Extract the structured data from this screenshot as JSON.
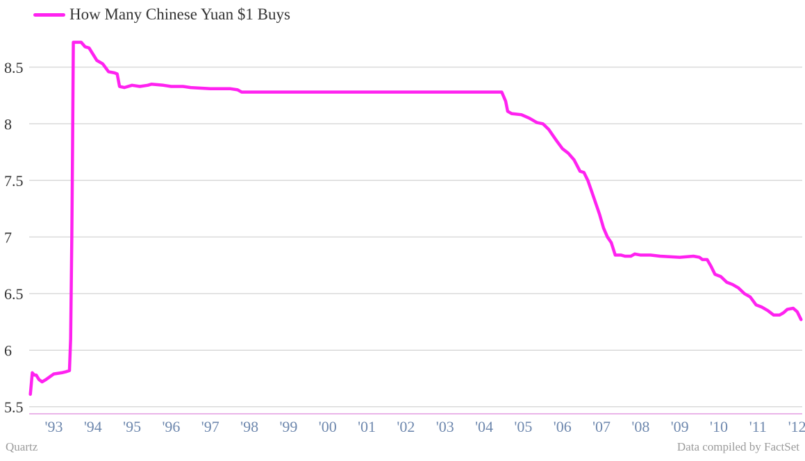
{
  "chart_data": {
    "type": "line",
    "title": "",
    "xlabel": "",
    "ylabel": "",
    "series": [
      {
        "name": "How Many Chinese Yuan $1 Buys",
        "color": "#ff22f0",
        "points": [
          [
            1992.9,
            5.61
          ],
          [
            1992.95,
            5.8
          ],
          [
            1993.0,
            5.78
          ],
          [
            1993.05,
            5.78
          ],
          [
            1993.12,
            5.74
          ],
          [
            1993.2,
            5.72
          ],
          [
            1993.3,
            5.74
          ],
          [
            1993.5,
            5.79
          ],
          [
            1993.7,
            5.8
          ],
          [
            1993.82,
            5.81
          ],
          [
            1993.9,
            5.82
          ],
          [
            1993.93,
            6.1
          ],
          [
            1993.96,
            7.0
          ],
          [
            1993.98,
            7.8
          ],
          [
            1994.0,
            8.72
          ],
          [
            1994.1,
            8.72
          ],
          [
            1994.2,
            8.72
          ],
          [
            1994.3,
            8.68
          ],
          [
            1994.4,
            8.67
          ],
          [
            1994.6,
            8.56
          ],
          [
            1994.75,
            8.53
          ],
          [
            1994.9,
            8.46
          ],
          [
            1995.05,
            8.45
          ],
          [
            1995.12,
            8.44
          ],
          [
            1995.18,
            8.33
          ],
          [
            1995.3,
            8.32
          ],
          [
            1995.5,
            8.34
          ],
          [
            1995.7,
            8.33
          ],
          [
            1995.9,
            8.34
          ],
          [
            1996.0,
            8.35
          ],
          [
            1996.3,
            8.34
          ],
          [
            1996.5,
            8.33
          ],
          [
            1996.8,
            8.33
          ],
          [
            1997.0,
            8.32
          ],
          [
            1997.5,
            8.31
          ],
          [
            1998.0,
            8.31
          ],
          [
            1998.2,
            8.3
          ],
          [
            1998.3,
            8.28
          ],
          [
            1999.0,
            8.28
          ],
          [
            2000.0,
            8.28
          ],
          [
            2001.0,
            8.28
          ],
          [
            2002.0,
            8.28
          ],
          [
            2003.0,
            8.28
          ],
          [
            2004.0,
            8.28
          ],
          [
            2004.95,
            8.28
          ],
          [
            2005.05,
            8.2
          ],
          [
            2005.1,
            8.11
          ],
          [
            2005.2,
            8.09
          ],
          [
            2005.45,
            8.08
          ],
          [
            2005.65,
            8.05
          ],
          [
            2005.85,
            8.01
          ],
          [
            2006.0,
            8.0
          ],
          [
            2006.15,
            7.95
          ],
          [
            2006.35,
            7.85
          ],
          [
            2006.5,
            7.78
          ],
          [
            2006.65,
            7.74
          ],
          [
            2006.8,
            7.68
          ],
          [
            2006.95,
            7.58
          ],
          [
            2007.05,
            7.57
          ],
          [
            2007.15,
            7.5
          ],
          [
            2007.25,
            7.4
          ],
          [
            2007.35,
            7.3
          ],
          [
            2007.45,
            7.2
          ],
          [
            2007.55,
            7.08
          ],
          [
            2007.65,
            7.0
          ],
          [
            2007.75,
            6.95
          ],
          [
            2007.85,
            6.84
          ],
          [
            2008.0,
            6.84
          ],
          [
            2008.1,
            6.83
          ],
          [
            2008.25,
            6.83
          ],
          [
            2008.35,
            6.85
          ],
          [
            2008.5,
            6.84
          ],
          [
            2008.75,
            6.84
          ],
          [
            2009.0,
            6.83
          ],
          [
            2009.5,
            6.82
          ],
          [
            2009.85,
            6.83
          ],
          [
            2010.0,
            6.82
          ],
          [
            2010.08,
            6.8
          ],
          [
            2010.2,
            6.8
          ],
          [
            2010.3,
            6.74
          ],
          [
            2010.4,
            6.67
          ],
          [
            2010.55,
            6.65
          ],
          [
            2010.7,
            6.6
          ],
          [
            2010.85,
            6.58
          ],
          [
            2011.0,
            6.55
          ],
          [
            2011.15,
            6.5
          ],
          [
            2011.3,
            6.47
          ],
          [
            2011.45,
            6.4
          ],
          [
            2011.6,
            6.38
          ],
          [
            2011.75,
            6.35
          ],
          [
            2011.9,
            6.31
          ],
          [
            2012.05,
            6.31
          ],
          [
            2012.15,
            6.33
          ],
          [
            2012.25,
            6.36
          ],
          [
            2012.4,
            6.37
          ],
          [
            2012.5,
            6.34
          ],
          [
            2012.6,
            6.27
          ]
        ]
      }
    ],
    "x_ticks": [
      {
        "value": 1993.5,
        "label": "'93"
      },
      {
        "value": 1994.5,
        "label": "'94"
      },
      {
        "value": 1995.5,
        "label": "'95"
      },
      {
        "value": 1996.5,
        "label": "'96"
      },
      {
        "value": 1997.5,
        "label": "'97"
      },
      {
        "value": 1998.5,
        "label": "'98"
      },
      {
        "value": 1999.5,
        "label": "'99"
      },
      {
        "value": 2000.5,
        "label": "'00"
      },
      {
        "value": 2001.5,
        "label": "'01"
      },
      {
        "value": 2002.5,
        "label": "'02"
      },
      {
        "value": 2003.5,
        "label": "'03"
      },
      {
        "value": 2004.5,
        "label": "'04"
      },
      {
        "value": 2005.5,
        "label": "'05"
      },
      {
        "value": 2006.5,
        "label": "'06"
      },
      {
        "value": 2007.5,
        "label": "'07"
      },
      {
        "value": 2008.5,
        "label": "'08"
      },
      {
        "value": 2009.5,
        "label": "'09"
      },
      {
        "value": 2010.5,
        "label": "'10"
      },
      {
        "value": 2011.5,
        "label": "'11"
      },
      {
        "value": 2012.5,
        "label": "'12"
      }
    ],
    "y_ticks": [
      {
        "value": 5.5,
        "label": "5.5"
      },
      {
        "value": 6,
        "label": "6"
      },
      {
        "value": 6.5,
        "label": "6.5"
      },
      {
        "value": 7,
        "label": "7"
      },
      {
        "value": 7.5,
        "label": "7.5"
      },
      {
        "value": 8,
        "label": "8"
      },
      {
        "value": 8.5,
        "label": "8.5"
      }
    ],
    "xlim": [
      1992.87,
      2012.63
    ],
    "ylim": [
      5.45,
      8.75
    ],
    "grid": true,
    "legend": "top-left"
  },
  "footer": {
    "left": "Quartz",
    "right": "Data compiled by FactSet"
  }
}
